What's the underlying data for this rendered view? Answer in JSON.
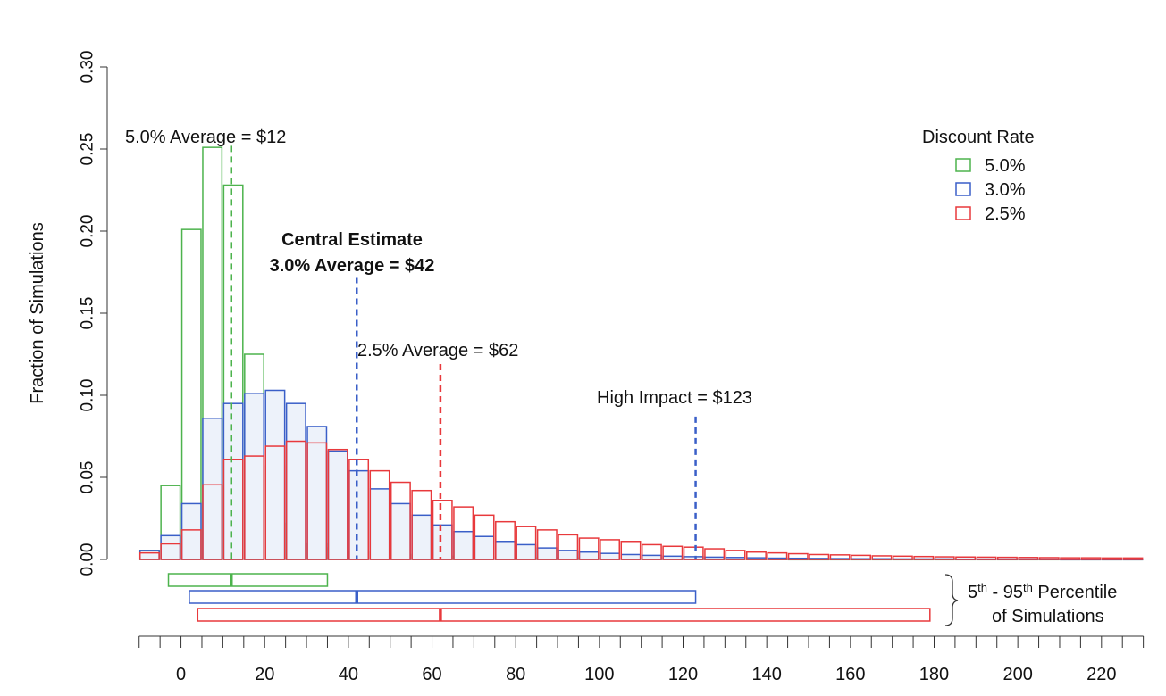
{
  "chart_data": {
    "type": "bar",
    "ylabel": "Fraction of Simulations",
    "xlim": [
      -14,
      232
    ],
    "ylim": [
      0,
      0.3
    ],
    "y_ticks": [
      0.0,
      0.05,
      0.1,
      0.15,
      0.2,
      0.25,
      0.3
    ],
    "y_tick_labels": [
      "0.00",
      "0.05",
      "0.10",
      "0.15",
      "0.20",
      "0.25",
      "0.30"
    ],
    "x_ticks": [
      0,
      20,
      40,
      60,
      80,
      100,
      120,
      140,
      160,
      180,
      200,
      220
    ],
    "x_tick_labels": [
      "0",
      "20",
      "40",
      "60",
      "80",
      "100",
      "120",
      "140",
      "160",
      "180",
      "200",
      "220"
    ],
    "x_minor_tick_step": 5,
    "bin_width": 5,
    "x": [
      -10,
      -5,
      0,
      5,
      10,
      15,
      20,
      25,
      30,
      35,
      40,
      45,
      50,
      55,
      60,
      65,
      70,
      75,
      80,
      85,
      90,
      95,
      100,
      105,
      110,
      115,
      120,
      125,
      130,
      135,
      140,
      145,
      150,
      155,
      160,
      165,
      170,
      175,
      180,
      185,
      190,
      195,
      200,
      205,
      210,
      215,
      220,
      225
    ],
    "series": [
      {
        "name": "5.0%",
        "color": "#4db34d",
        "fill": "none",
        "values": [
          0.0055,
          0.045,
          0.201,
          0.251,
          0.228,
          0.125,
          0.057,
          0.022,
          0.01,
          0.007,
          0.005,
          0.004,
          0.003,
          0.003,
          0.002,
          0.002,
          0.0015,
          0.001,
          0.001,
          0.001,
          0.001,
          0.0005,
          0.0005,
          0.0005,
          0.0003,
          0.0003,
          0.0003,
          0.0002,
          0.0002,
          0.0002,
          0.0002,
          0.0001,
          0.0001,
          0.0001,
          0.0001,
          0.0001,
          0.0001,
          0.0001,
          0.0001,
          0.0001,
          0.0001,
          0.0001,
          0.0001,
          0.0001,
          0.0001,
          0.0001,
          0.0001,
          0.0001
        ]
      },
      {
        "name": "3.0%",
        "color": "#3a5fc8",
        "fill": "#edf2fa",
        "values": [
          0.0055,
          0.0145,
          0.034,
          0.086,
          0.095,
          0.101,
          0.103,
          0.095,
          0.081,
          0.066,
          0.054,
          0.043,
          0.034,
          0.027,
          0.021,
          0.017,
          0.014,
          0.011,
          0.009,
          0.007,
          0.0055,
          0.0045,
          0.0037,
          0.003,
          0.0025,
          0.002,
          0.0017,
          0.0014,
          0.0012,
          0.001,
          0.0008,
          0.0007,
          0.0006,
          0.0005,
          0.0004,
          0.0004,
          0.0003,
          0.0003,
          0.0003,
          0.0002,
          0.0002,
          0.0002,
          0.0002,
          0.0002,
          0.0001,
          0.0001,
          0.0001,
          0.0001
        ]
      },
      {
        "name": "2.5%",
        "color": "#e8393c",
        "fill": "none",
        "values": [
          0.004,
          0.0095,
          0.018,
          0.0455,
          0.061,
          0.063,
          0.069,
          0.072,
          0.071,
          0.067,
          0.061,
          0.054,
          0.047,
          0.042,
          0.036,
          0.032,
          0.027,
          0.023,
          0.02,
          0.018,
          0.015,
          0.013,
          0.012,
          0.011,
          0.009,
          0.008,
          0.0075,
          0.0065,
          0.0055,
          0.0045,
          0.004,
          0.0035,
          0.003,
          0.0028,
          0.0025,
          0.0022,
          0.002,
          0.0018,
          0.0016,
          0.0015,
          0.0014,
          0.0013,
          0.0012,
          0.0011,
          0.001,
          0.001,
          0.0009,
          0.0009
        ]
      }
    ],
    "legend": {
      "title": "Discount Rate",
      "position": "top-right",
      "entries": [
        "5.0%",
        "3.0%",
        "2.5%"
      ]
    },
    "reference_lines": [
      {
        "label": "5.0% Average = $12",
        "x": 12,
        "y_top": 0.252,
        "color": "#4db34d",
        "bold": false,
        "label_lines": [
          "5.0% Average = $12"
        ]
      },
      {
        "label": "Central Estimate 3.0% Average = $42",
        "x": 42,
        "y_top": 0.172,
        "color": "#3a5fc8",
        "bold": true,
        "label_lines": [
          "Central Estimate",
          "3.0% Average = $42"
        ]
      },
      {
        "label": "2.5% Average = $62",
        "x": 62,
        "y_top": 0.119,
        "color": "#e8393c",
        "bold": false,
        "label_lines": [
          "2.5% Average = $62"
        ]
      },
      {
        "label": "High Impact = $123",
        "x": 123,
        "y_top": 0.087,
        "color": "#3a5fc8",
        "bold": false,
        "label_lines": [
          "High Impact = $123"
        ]
      }
    ],
    "percentile_bars": {
      "label_lines": [
        "5th - 95th Percentile",
        "of Simulations"
      ],
      "bars": [
        {
          "series": "5.0%",
          "p5": -3,
          "p95": 35,
          "mean": 12,
          "color": "#4db34d"
        },
        {
          "series": "3.0%",
          "p5": 2,
          "p95": 123,
          "mean": 42,
          "color": "#3a5fc8"
        },
        {
          "series": "2.5%",
          "p5": 4,
          "p95": 179,
          "mean": 62,
          "color": "#e8393c"
        }
      ]
    }
  }
}
